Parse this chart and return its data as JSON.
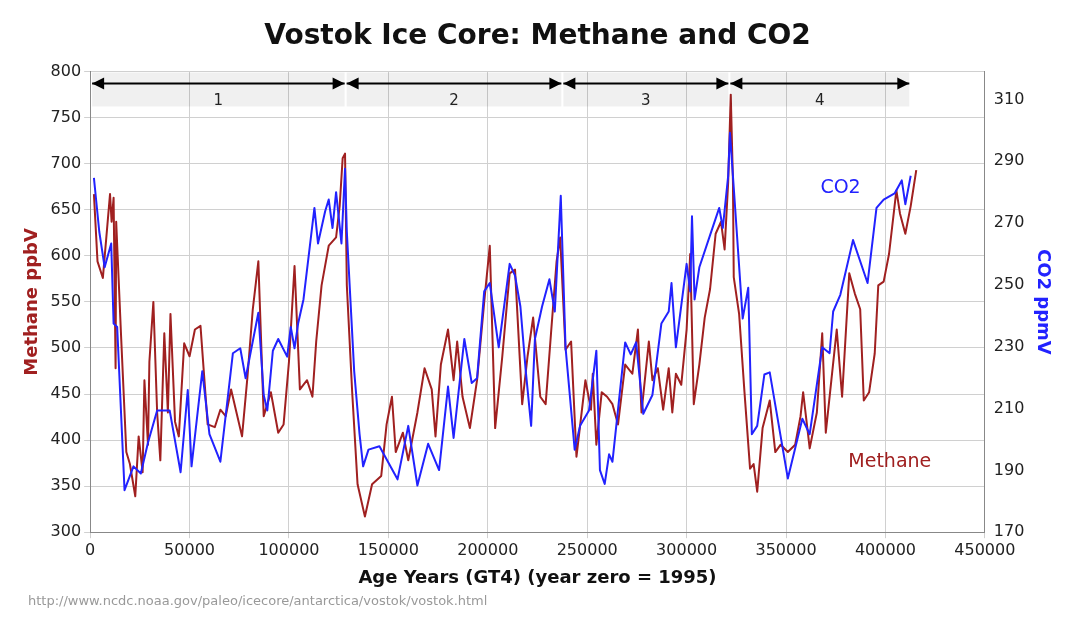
{
  "chart_data": {
    "type": "line",
    "title": "Vostok Ice Core: Methane and CO2",
    "xlabel": "Age Years (GT4) (year zero = 1995)",
    "ylabel": "Methane ppbV",
    "y2label": "CO2 ppmV",
    "annotations": [
      "http://www.ncdc.noaa.gov/paleo/icecore/antarctica/vostok/vostok.html"
    ],
    "xlim": [
      0,
      450000
    ],
    "xticks": [
      0,
      50000,
      100000,
      150000,
      200000,
      250000,
      300000,
      350000,
      400000,
      450000
    ],
    "ylim": [
      300,
      800
    ],
    "yticks": [
      300,
      350,
      400,
      450,
      500,
      550,
      600,
      650,
      700,
      750,
      800
    ],
    "y2lim": [
      170,
      319
    ],
    "y2ticks": [
      170,
      190,
      210,
      230,
      250,
      270,
      290,
      310
    ],
    "grid": true,
    "legend": false,
    "marker": "none",
    "line_style": "solid",
    "bands": [
      {
        "axis": "x",
        "from": 1000,
        "to": 128000,
        "label": "1",
        "color": "#000000"
      },
      {
        "axis": "x",
        "from": 129000,
        "to": 237000,
        "label": "2",
        "color": "#000000"
      },
      {
        "axis": "x",
        "from": 238000,
        "to": 321000,
        "label": "3",
        "color": "#000000"
      },
      {
        "axis": "x",
        "from": 322000,
        "to": 412000,
        "label": "4",
        "color": "#000000"
      }
    ],
    "series": [
      {
        "name": "Methane",
        "color": "#a02020",
        "x": [
          1900,
          3700,
          6400,
          10000,
          10800,
          11800,
          12800,
          13100,
          15500,
          18200,
          20000,
          22700,
          24400,
          26400,
          27300,
          29100,
          29800,
          31800,
          33700,
          35300,
          37300,
          39100,
          40400,
          42700,
          44600,
          47300,
          50000,
          52700,
          55500,
          59100,
          62700,
          65500,
          68200,
          70900,
          73600,
          76400,
          79100,
          81800,
          84600,
          87300,
          90900,
          94600,
          97300,
          100000,
          102800,
          105500,
          109100,
          111800,
          113700,
          116400,
          120000,
          123700,
          125500,
          127000,
          128200,
          129100,
          131800,
          134500,
          138200,
          141800,
          146400,
          149100,
          151800,
          153700,
          157300,
          160000,
          164600,
          168200,
          171800,
          173700,
          176400,
          180000,
          182800,
          184600,
          187300,
          191000,
          194600,
          198200,
          201000,
          203700,
          207300,
          211000,
          213700,
          217300,
          220000,
          222800,
          226400,
          229100,
          231800,
          234600,
          236400,
          239100,
          241900,
          244600,
          249100,
          251900,
          252800,
          254600,
          257300,
          260000,
          262700,
          265500,
          269100,
          272700,
          275500,
          277300,
          281000,
          282800,
          285500,
          288200,
          291000,
          292800,
          294600,
          297300,
          300000,
          301800,
          303600,
          306400,
          309100,
          311800,
          314600,
          317300,
          319100,
          320900,
          322200,
          323300,
          323700,
          326400,
          329100,
          331900,
          333700,
          335500,
          338200,
          341800,
          344600,
          347300,
          350900,
          354600,
          357300,
          358600,
          361900,
          365500,
          368200,
          370000,
          372800,
          375500,
          378200,
          381800,
          384600,
          387300,
          389100,
          391800,
          394600,
          396400,
          399100,
          401800,
          405500,
          407300,
          410000,
          412700,
          415500
        ],
        "values": [
          667,
          594,
          576,
          667,
          637,
          663,
          478,
          637,
          516,
          387,
          374,
          339,
          404,
          365,
          465,
          395,
          485,
          550,
          430,
          378,
          516,
          430,
          537,
          420,
          404,
          505,
          491,
          520,
          524,
          417,
          414,
          433,
          426,
          455,
          430,
          404,
          468,
          542,
          594,
          426,
          452,
          408,
          417,
          485,
          589,
          455,
          465,
          447,
          507,
          568,
          611,
          620,
          654,
          706,
          711,
          568,
          452,
          352,
          317,
          352,
          361,
          417,
          447,
          387,
          408,
          378,
          430,
          478,
          455,
          404,
          482,
          520,
          465,
          507,
          447,
          413,
          465,
          550,
          611,
          413,
          491,
          581,
          585,
          439,
          491,
          533,
          447,
          439,
          516,
          594,
          620,
          498,
          507,
          382,
          465,
          433,
          472,
          395,
          452,
          447,
          439,
          417,
          482,
          472,
          520,
          430,
          507,
          465,
          478,
          433,
          478,
          430,
          472,
          460,
          520,
          602,
          439,
          482,
          533,
          564,
          624,
          637,
          607,
          680,
          775,
          680,
          577,
          537,
          452,
          369,
          374,
          344,
          413,
          443,
          387,
          395,
          387,
          395,
          426,
          452,
          391,
          430,
          516,
          408,
          465,
          520,
          447,
          581,
          559,
          542,
          443,
          452,
          494,
          568,
          572,
          602,
          671,
          646,
          624,
          654,
          693
        ]
      },
      {
        "name": "CO2",
        "color": "#2222ff",
        "axis": "y2",
        "x": [
          1900,
          4600,
          7300,
          10600,
          11800,
          13600,
          17300,
          21800,
          25500,
          29100,
          33700,
          40000,
          45500,
          49100,
          51000,
          56400,
          60000,
          65500,
          71800,
          75500,
          78200,
          84600,
          87300,
          89100,
          91900,
          94600,
          99100,
          100900,
          102800,
          104600,
          107300,
          112800,
          114600,
          118200,
          120000,
          121900,
          123700,
          126400,
          128200,
          129100,
          132800,
          135500,
          137300,
          140000,
          145500,
          154600,
          160000,
          164600,
          170000,
          175500,
          180000,
          182800,
          188200,
          191900,
          194600,
          198200,
          201000,
          205500,
          211000,
          213700,
          216400,
          219100,
          221800,
          223700,
          227300,
          231000,
          233700,
          236700,
          239100,
          243700,
          246400,
          250900,
          254600,
          256400,
          258800,
          261000,
          262700,
          269100,
          271900,
          274600,
          278200,
          282800,
          287300,
          291000,
          292400,
          294600,
          300000,
          301800,
          302700,
          304000,
          306400,
          311800,
          316400,
          318200,
          320900,
          321800,
          323700,
          328200,
          331000,
          332800,
          335500,
          339100,
          341800,
          350900,
          358200,
          361900,
          368200,
          371900,
          373700,
          377300,
          383700,
          391000,
          395500,
          399100,
          404600,
          408200,
          410000,
          412700
        ],
        "values": [
          284.6,
          267.2,
          255.7,
          263.4,
          237.5,
          236.4,
          183.6,
          191.3,
          189,
          199,
          209.4,
          209.4,
          189.4,
          216,
          191.3,
          222.1,
          201.7,
          192.8,
          227.9,
          229.5,
          219.8,
          241,
          214.4,
          209.4,
          228.7,
          232.5,
          226.8,
          236.4,
          229.5,
          237.5,
          245.3,
          274.9,
          263.4,
          273.8,
          277.6,
          268.4,
          280,
          263.4,
          287.6,
          267.2,
          222.1,
          201.7,
          191.3,
          196.7,
          197.8,
          187.1,
          204.4,
          185.1,
          198.6,
          190.1,
          217.1,
          200.5,
          232.5,
          218.3,
          219.8,
          247.9,
          250.6,
          229.8,
          256.8,
          253,
          243,
          222.1,
          204.4,
          232.5,
          243,
          251.8,
          241.4,
          278.8,
          229.8,
          196.7,
          204.4,
          209.4,
          228.7,
          190.1,
          185.6,
          195.2,
          192.8,
          231.4,
          227.5,
          231.4,
          208.3,
          214.4,
          237.5,
          241.4,
          250.6,
          229.8,
          256.8,
          247.9,
          272.2,
          245.3,
          255.7,
          266.1,
          274.9,
          268.4,
          285.3,
          299.2,
          281.5,
          239.1,
          249.1,
          201.7,
          204.4,
          221,
          221.7,
          187.4,
          206.7,
          201.7,
          229.8,
          227.9,
          241.4,
          246.8,
          264.5,
          250.6,
          274.9,
          277.6,
          279.6,
          283.8,
          276.1,
          285.3
        ]
      }
    ]
  }
}
